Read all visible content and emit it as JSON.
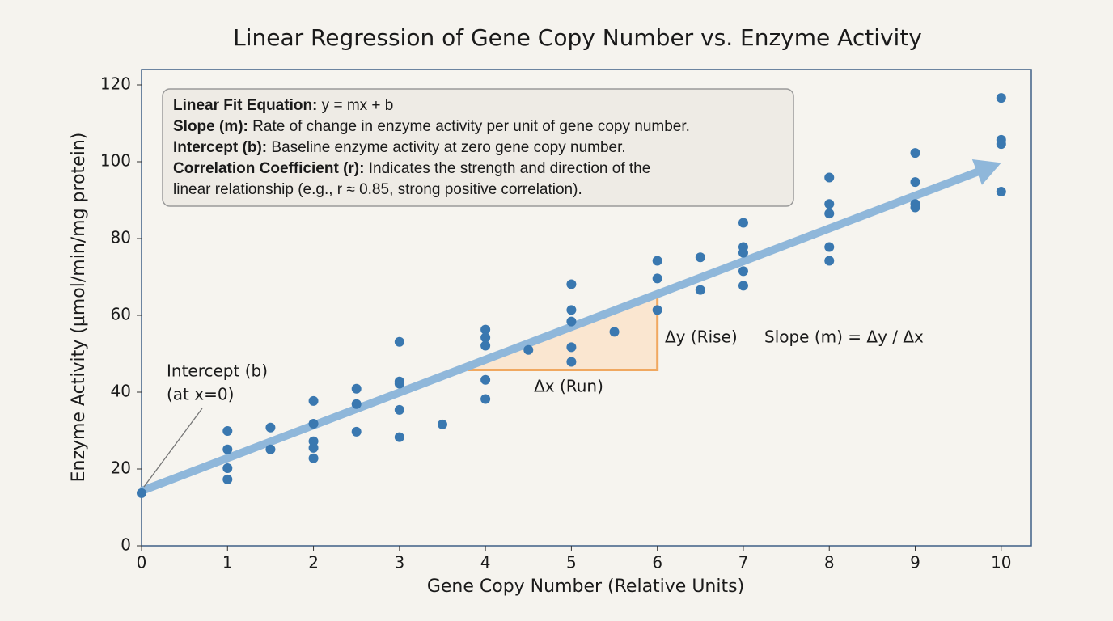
{
  "chart_data": {
    "type": "scatter",
    "title": "Linear Regression of Gene Copy Number vs. Enzyme Activity",
    "x_label": "Gene Copy Number (Relative Units)",
    "y_label": "Enzyme Activity (µmol/min/mg protein)",
    "x": [
      0,
      1,
      1,
      1,
      1,
      1.5,
      1.5,
      2,
      2,
      2,
      2,
      2,
      2.5,
      2.5,
      2.5,
      3,
      3,
      3,
      3,
      3,
      3.5,
      4,
      4,
      4,
      4,
      4,
      4.5,
      5,
      5,
      5,
      5,
      5,
      5.5,
      6,
      6,
      6,
      6.5,
      6.5,
      7,
      7,
      7,
      7,
      7,
      8,
      8,
      8,
      8,
      8,
      9,
      9,
      9,
      9,
      10,
      10,
      10,
      10
    ],
    "values": [
      13.7,
      29.9,
      25.1,
      20.2,
      17.3,
      30.8,
      25.1,
      37.7,
      31.8,
      27.2,
      25.5,
      22.8,
      40.9,
      36.9,
      29.7,
      53.1,
      42.8,
      42.2,
      35.4,
      28.3,
      31.6,
      56.3,
      54.2,
      52.1,
      43.2,
      38.2,
      51.0,
      68.1,
      61.4,
      58.4,
      51.7,
      47.9,
      55.7,
      74.2,
      69.6,
      61.4,
      75.1,
      66.6,
      84.1,
      77.8,
      76.3,
      71.5,
      67.7,
      95.9,
      89.0,
      86.5,
      77.8,
      74.2,
      102.3,
      94.7,
      89.0,
      88.1,
      116.6,
      105.7,
      104.6,
      92.2
    ],
    "color": "#3a78b0",
    "fit": {
      "x": [
        0,
        10
      ],
      "y": [
        14.3,
        99.7
      ],
      "color": "#8fb7da"
    },
    "slope_triangle": {
      "x": [
        3.8,
        6
      ],
      "y": [
        45.8,
        64.7
      ],
      "color": "#f0a860",
      "run_label": "Δx (Run)",
      "rise_label": "Δy (Rise)",
      "slope_label": "Slope (m) = Δy / Δx"
    },
    "intercept_label": [
      "Intercept (b)",
      "(at x=0)"
    ],
    "info_box": [
      {
        "bold": "Linear Fit Equation:",
        "text": "y = mx + b"
      },
      {
        "bold": "Slope (m):",
        "text": "Rate of change in enzyme activity per unit of gene copy number."
      },
      {
        "bold": "Intercept (b):",
        "text": "Baseline enzyme activity at zero gene copy number."
      },
      {
        "bold": "Correlation Coefficient (r):",
        "text": "Indicates the strength and direction of the"
      },
      {
        "text": "linear relationship (e.g., r ≈ 0.85, strong positive correlation)."
      }
    ],
    "xlim": [
      0,
      10.35
    ],
    "ylim": [
      0,
      124
    ],
    "xticks": [
      0,
      1,
      2,
      3,
      4,
      5,
      6,
      7,
      8,
      9,
      10
    ],
    "yticks": [
      0,
      20,
      40,
      60,
      80,
      100,
      120
    ]
  }
}
